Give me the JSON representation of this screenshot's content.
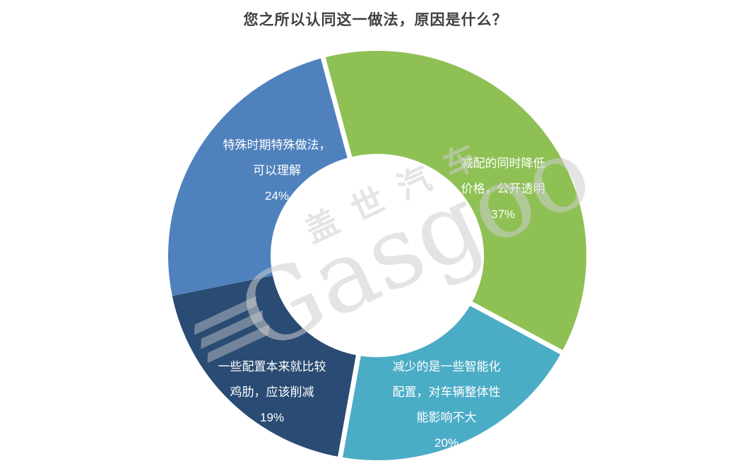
{
  "page": {
    "title": "您之所以认同这一做法，原因是什么？",
    "background_color": "#ffffff",
    "title_color": "#404040"
  },
  "watermark": {
    "text_cn": "盖世汽车",
    "text_en": "Gasgoo"
  },
  "chart_data": {
    "type": "pie",
    "subtype": "donut",
    "title": "您之所以认同这一做法，原因是什么？",
    "start_angle_deg": -15,
    "direction": "clockwise",
    "inner_radius_ratio": 0.5,
    "label_color": "#ffffff",
    "separator_color": "#ffffff",
    "slices": [
      {
        "label": "减配的同时降低价格，公开透明",
        "value_pct": 37,
        "color": "#8ec054",
        "gap_before": true,
        "display": "减配的同时降低\n价格，公开透明\n37%"
      },
      {
        "label": "减少的是一些智能化配置，对车辆整体性能影响不大",
        "value_pct": 20,
        "color": "#4bacc6",
        "gap_before": true,
        "display": "减少的是一些智能化\n配置，对车辆整体性\n能影响不大\n20%"
      },
      {
        "label": "一些配置本来就比较鸡肋，应该削减",
        "value_pct": 19,
        "color": "#2a4b73",
        "gap_before": true,
        "display": "一些配置本来就比较\n鸡肋，应该削减\n19%"
      },
      {
        "label": "特殊时期特殊做法，可以理解",
        "value_pct": 24,
        "color": "#4f81bd",
        "gap_before": false,
        "display": "特殊时期特殊做法，\n可以理解\n24%"
      }
    ]
  }
}
